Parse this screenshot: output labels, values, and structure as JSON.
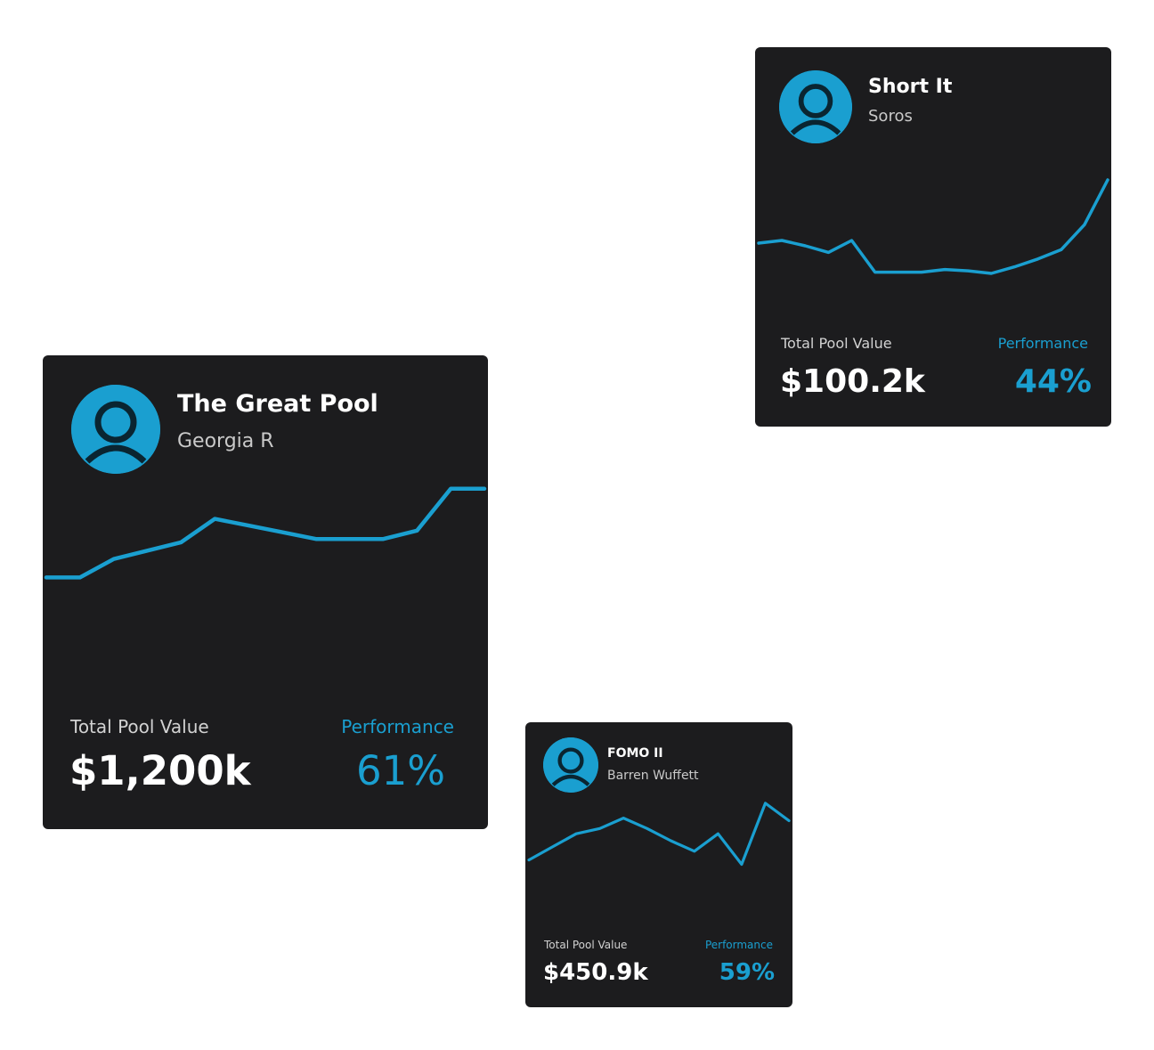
{
  "accent_color": "#1a9fd0",
  "card_background": "#1c1c1e",
  "cards": [
    {
      "title": "The Great Pool",
      "owner": "Georgia R",
      "avatar_icon": "user-avatar-icon",
      "value_label": "Total Pool Value",
      "value": "$1,200k",
      "performance_label": "Performance",
      "performance": "61%",
      "trend": [
        45,
        45,
        56,
        61,
        66,
        80,
        76,
        72,
        68,
        68,
        68,
        73,
        98,
        98
      ]
    },
    {
      "title": "Short It",
      "owner": "Soros",
      "avatar_icon": "user-avatar-icon",
      "value_label": "Total Pool Value",
      "value": "$100.2k",
      "performance_label": "Performance",
      "performance": "44%",
      "trend": [
        50,
        52,
        48,
        43,
        52,
        28,
        28,
        28,
        30,
        29,
        27,
        32,
        38,
        45,
        64,
        98
      ]
    },
    {
      "title": "FOMO II",
      "owner": "Barren Wuffett",
      "avatar_icon": "user-avatar-icon",
      "value_label": "Total Pool Value",
      "value": "$450.9k",
      "performance_label": "Performance",
      "performance": "59%",
      "trend": [
        30,
        45,
        60,
        66,
        78,
        66,
        52,
        40,
        60,
        25,
        95,
        75
      ]
    }
  ]
}
